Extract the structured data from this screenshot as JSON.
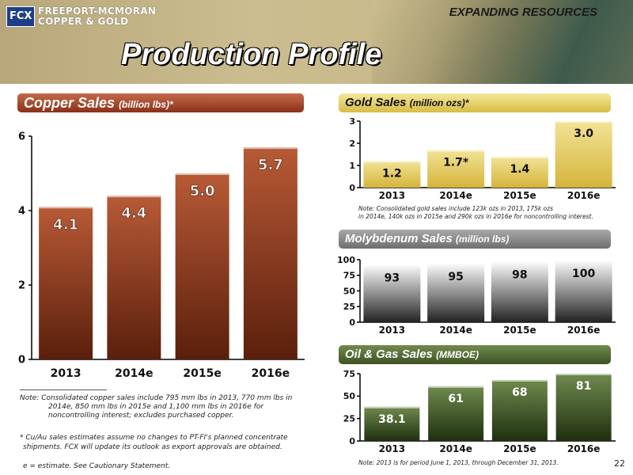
{
  "header": {
    "logo_mark": "FCX",
    "company_line1": "FREEPORT-MCMORAN",
    "company_line2": "COPPER & GOLD",
    "tagline": "EXPANDING RESOURCES",
    "title": "Production Profile"
  },
  "colors": {
    "copper": "#8a3019",
    "gold": "#e6cc5a",
    "moly": "#777777",
    "oil": "#3d5323"
  },
  "chart_data": [
    {
      "type": "bar",
      "title": "Copper Sales",
      "title_unit": "(billion lbs)*",
      "categories": [
        "2013",
        "2014e",
        "2015e",
        "2016e"
      ],
      "values": [
        4.1,
        4.4,
        5.0,
        5.7
      ],
      "value_labels": [
        "4.1",
        "4.4",
        "5.0",
        "5.7"
      ],
      "ylim": [
        0,
        6
      ],
      "yticks": [
        "0",
        "2",
        "4",
        "6"
      ],
      "ytick_values": [
        0,
        2,
        4,
        6
      ],
      "grid": false
    },
    {
      "type": "bar",
      "title": "Gold Sales",
      "title_unit": "(million ozs)*",
      "categories": [
        "2013",
        "2014e",
        "2015e",
        "2016e"
      ],
      "values": [
        1.2,
        1.7,
        1.4,
        3.0
      ],
      "value_labels": [
        "1.2",
        "1.7*",
        "1.4",
        "3.0"
      ],
      "ylim": [
        0,
        3
      ],
      "yticks": [
        "0",
        "1",
        "2",
        "3"
      ],
      "ytick_values": [
        0,
        1,
        2,
        3
      ],
      "grid": false
    },
    {
      "type": "bar",
      "title": "Molybdenum Sales",
      "title_unit": "(million lbs)",
      "categories": [
        "2013",
        "2014e",
        "2015e",
        "2016e"
      ],
      "values": [
        93,
        95,
        98,
        100
      ],
      "value_labels": [
        "93",
        "95",
        "98",
        "100"
      ],
      "ylim": [
        0,
        100
      ],
      "yticks": [
        "0",
        "25",
        "50",
        "75",
        "100"
      ],
      "ytick_values": [
        0,
        25,
        50,
        75,
        100
      ],
      "grid": false
    },
    {
      "type": "bar",
      "title": "Oil & Gas Sales",
      "title_unit": "(MMBOE)",
      "categories": [
        "2013",
        "2014e",
        "2015e",
        "2016e"
      ],
      "values": [
        38.1,
        61,
        68,
        81
      ],
      "value_labels": [
        "38.1",
        "61",
        "68",
        "81"
      ],
      "ylim": [
        0,
        75
      ],
      "yticks": [
        "0",
        "25",
        "50",
        "75"
      ],
      "ytick_values": [
        0,
        25,
        50,
        75
      ],
      "grid": false
    }
  ],
  "notes": {
    "copper_note_line1": "Note:  Consolidated copper sales include 795 mm lbs in 2013, 770  mm lbs in",
    "copper_note_line2": "2014e, 850 mm lbs in 2015e and 1,100 mm lbs in 2016e for",
    "copper_note_line3": "noncontrolling interest; excludes purchased copper.",
    "cuau_line1": "* Cu/Au sales estimates assume no changes to PT-FI's planned concentrate",
    "cuau_line2": "shipments. FCX will update its outlook as export approvals are obtained.",
    "estimate": "e = estimate. See Cautionary Statement.",
    "gold_note_line1": "Note:  Consolidated gold sales include 123k ozs in 2013, 175k ozs",
    "gold_note_line2": "in 2014e, 140k ozs in 2015e and 290k ozs in 2016e for noncontrolling interest.",
    "oil_note": "Note: 2013 is for period June 1, 2013, through December 31, 2013."
  },
  "page_number": "22"
}
